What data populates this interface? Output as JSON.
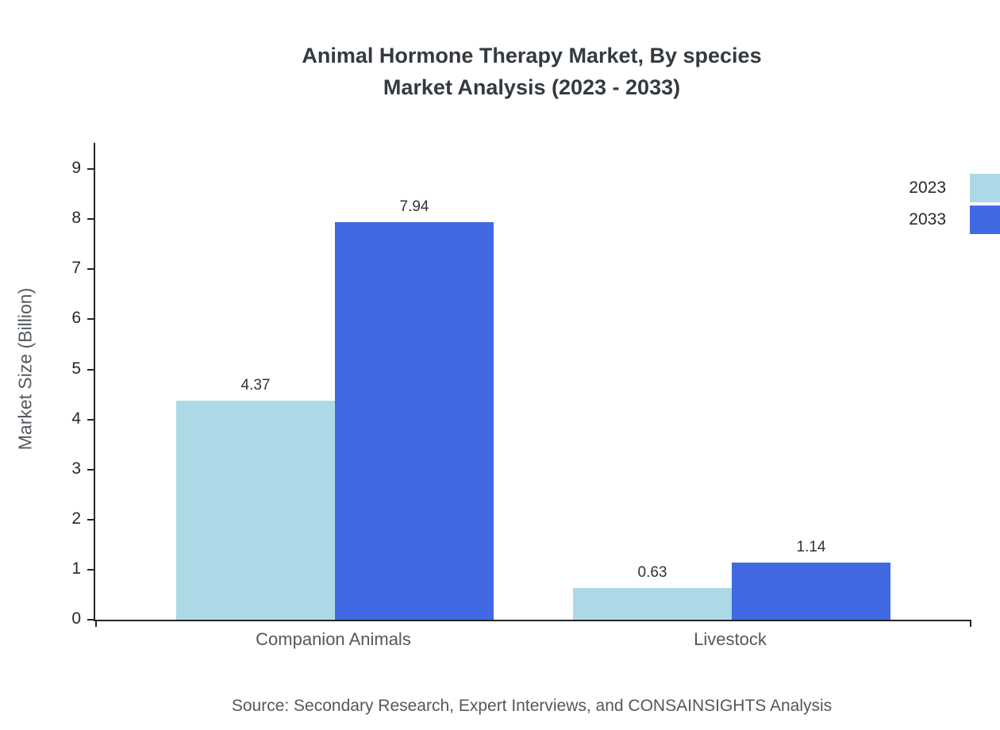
{
  "chart_data": {
    "type": "bar",
    "title": "Animal Hormone Therapy Market, By species",
    "subtitle": "Market Analysis (2023 - 2033)",
    "categories": [
      "Companion Animals",
      "Livestock"
    ],
    "series": [
      {
        "name": "2023",
        "color": "#ADD8E6",
        "values": [
          4.37,
          0.63
        ]
      },
      {
        "name": "2033",
        "color": "#4169E1",
        "values": [
          7.94,
          1.14
        ]
      }
    ],
    "xlabel": "",
    "ylabel": "Market Size (Billion)",
    "ylim": [
      0,
      9
    ],
    "yticks": [
      0,
      1,
      2,
      3,
      4,
      5,
      6,
      7,
      8,
      9
    ],
    "grid": false,
    "legend_position": "top-right",
    "source": "Source: Secondary Research, Expert Interviews, and CONSAINSIGHTS Analysis"
  }
}
